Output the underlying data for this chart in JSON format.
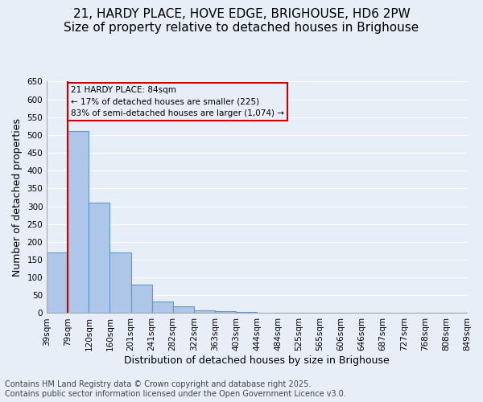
{
  "title_line1": "21, HARDY PLACE, HOVE EDGE, BRIGHOUSE, HD6 2PW",
  "title_line2": "Size of property relative to detached houses in Brighouse",
  "xlabel": "Distribution of detached houses by size in Brighouse",
  "ylabel": "Number of detached properties",
  "tick_labels": [
    "39sqm",
    "79sqm",
    "120sqm",
    "160sqm",
    "201sqm",
    "241sqm",
    "282sqm",
    "322sqm",
    "363sqm",
    "403sqm",
    "444sqm",
    "484sqm",
    "525sqm",
    "565sqm",
    "606sqm",
    "646sqm",
    "687sqm",
    "727sqm",
    "768sqm",
    "808sqm",
    "849sqm"
  ],
  "values": [
    170,
    510,
    310,
    170,
    80,
    33,
    20,
    8,
    5,
    3,
    2,
    1,
    1,
    0,
    0,
    0,
    0,
    0,
    0,
    0
  ],
  "bar_color": "#aec6e8",
  "bar_edge_color": "#5b9bd5",
  "background_color": "#e8eef7",
  "grid_color": "#ffffff",
  "vline_x_index": 1,
  "vline_color": "#cc0000",
  "annotation_text": "21 HARDY PLACE: 84sqm\n← 17% of detached houses are smaller (225)\n83% of semi-detached houses are larger (1,074) →",
  "annotation_box_color": "#cc0000",
  "ylim": [
    0,
    650
  ],
  "yticks": [
    0,
    50,
    100,
    150,
    200,
    250,
    300,
    350,
    400,
    450,
    500,
    550,
    600,
    650
  ],
  "footer_line1": "Contains HM Land Registry data © Crown copyright and database right 2025.",
  "footer_line2": "Contains public sector information licensed under the Open Government Licence v3.0.",
  "title_fontsize": 11,
  "axis_label_fontsize": 9,
  "tick_fontsize": 7.5,
  "footer_fontsize": 7
}
